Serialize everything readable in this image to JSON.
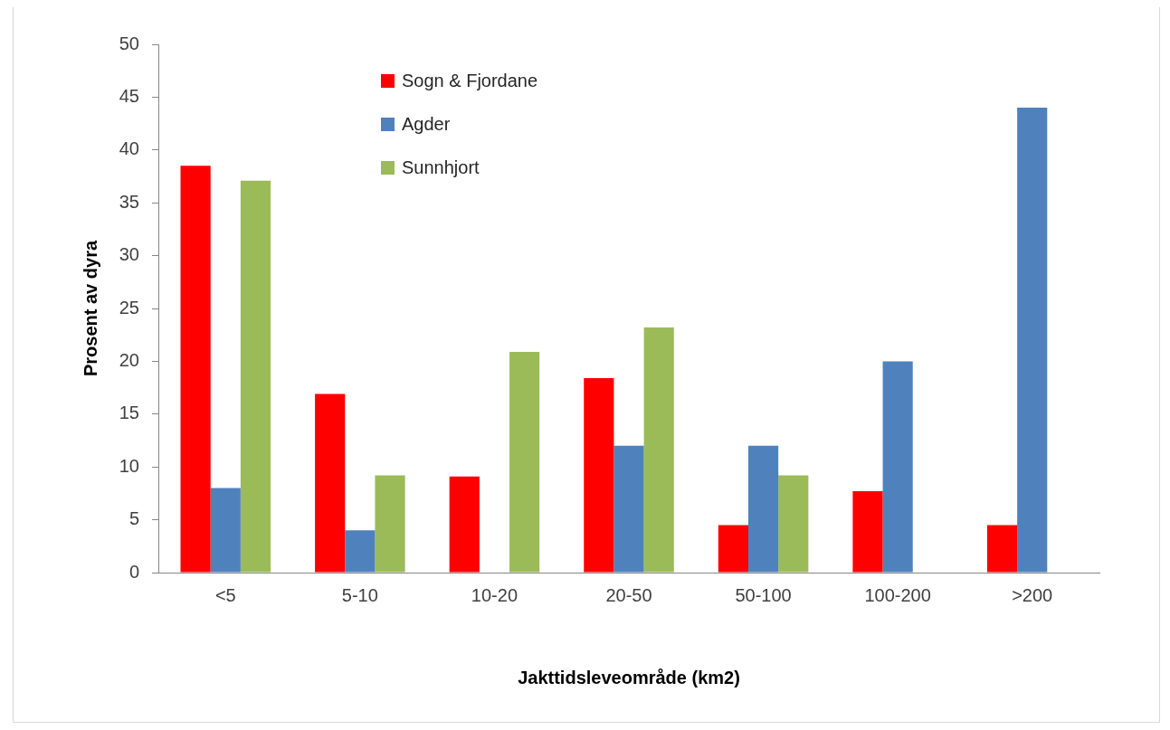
{
  "chart_data": {
    "type": "bar",
    "xlabel": "Jakttidsleveområde (km2)",
    "ylabel": "Prosent av dyra",
    "categories": [
      "<5",
      "5-10",
      "10-20",
      "20-50",
      "50-100",
      "100-200",
      ">200"
    ],
    "series": [
      {
        "name": "Sogn & Fjordane",
        "color": "#ff0000",
        "values": [
          38.5,
          16.9,
          9.1,
          18.4,
          4.5,
          7.7,
          4.5
        ]
      },
      {
        "name": "Agder",
        "color": "#4f81bd",
        "values": [
          8,
          4,
          null,
          12,
          12,
          20,
          44
        ]
      },
      {
        "name": "Sunnhjort",
        "color": "#9bbb59",
        "values": [
          37.1,
          9.2,
          20.9,
          23.2,
          9.2,
          null,
          null
        ]
      }
    ],
    "ylim": [
      0,
      50
    ],
    "yticks": [
      0,
      5,
      10,
      15,
      20,
      25,
      30,
      35,
      40,
      45,
      50
    ],
    "legend": "top left"
  }
}
